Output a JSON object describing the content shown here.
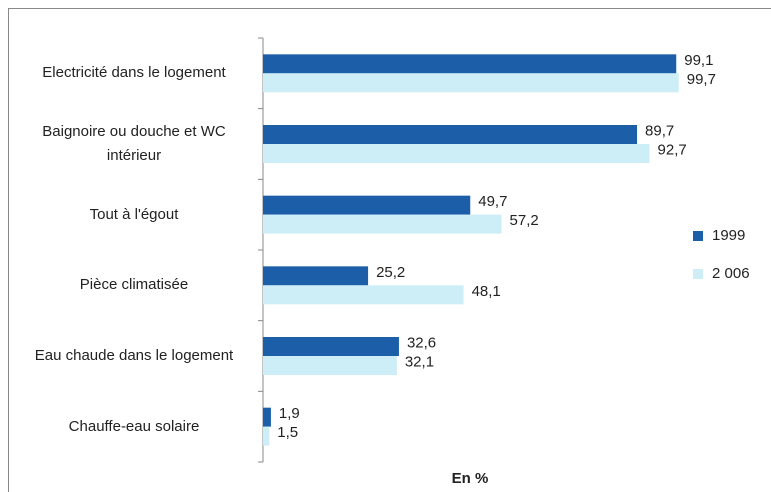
{
  "chart_data": {
    "type": "bar",
    "orientation": "horizontal",
    "categories": [
      "Electricité dans le logement",
      "Baignoire ou douche et WC intérieur",
      "Tout à l'égout",
      "Pièce climatisée",
      "Eau chaude dans le logement",
      "Chauffe-eau solaire"
    ],
    "series": [
      {
        "name": "1999",
        "color": "#1c5ea8",
        "values": [
          99.1,
          89.7,
          49.7,
          25.2,
          32.6,
          1.9
        ],
        "value_labels": [
          "99,1",
          "89,7",
          "49,7",
          "25,2",
          "32,6",
          "1,9"
        ]
      },
      {
        "name": "2 006",
        "color": "#cdeef6",
        "values": [
          99.7,
          92.7,
          57.2,
          48.1,
          32.1,
          1.5
        ],
        "value_labels": [
          "99,7",
          "92,7",
          "57,2",
          "48,1",
          "32,1",
          "1,5"
        ]
      }
    ],
    "xlim": [
      0,
      100
    ],
    "xlabel": "En %",
    "legend": "right"
  }
}
